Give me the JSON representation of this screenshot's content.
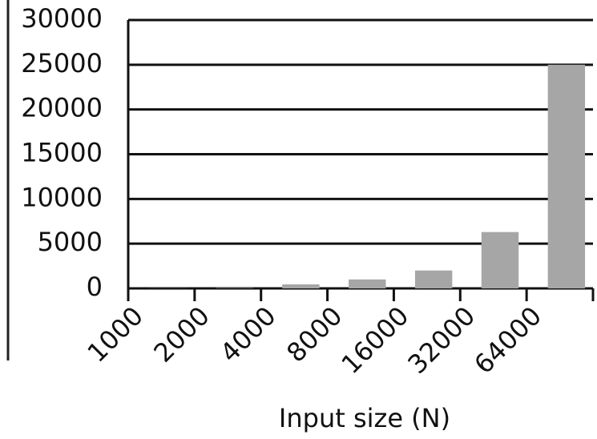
{
  "chart_data": {
    "type": "bar",
    "x_label": "Input size (N)",
    "categories": [
      "1000",
      "2000",
      "4000",
      "8000",
      "16000",
      "32000",
      "64000"
    ],
    "values": [
      10,
      40,
      450,
      1000,
      2000,
      6300,
      25000
    ],
    "color": "#a6a6a6",
    "ylim": [
      0,
      30000
    ],
    "yticks": [
      0,
      5000,
      10000,
      15000,
      20000,
      25000,
      30000
    ],
    "grid": true
  }
}
